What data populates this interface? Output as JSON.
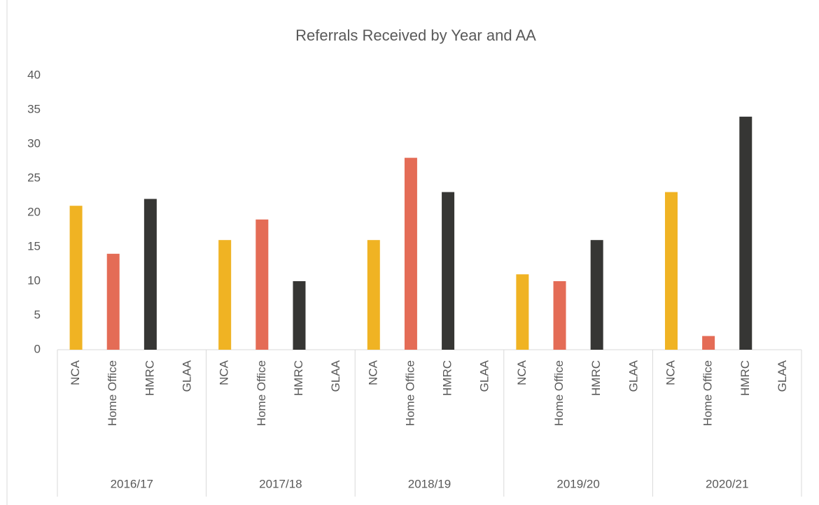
{
  "chart_data": {
    "type": "bar",
    "title": "Referrals Received by Year and AA",
    "groups": [
      {
        "name": "2016/17",
        "categories": [
          "NCA",
          "Home Office",
          "HMRC",
          "GLAA"
        ],
        "values": [
          21,
          14,
          22,
          0
        ]
      },
      {
        "name": "2017/18",
        "categories": [
          "NCA",
          "Home Office",
          "HMRC",
          "GLAA"
        ],
        "values": [
          16,
          19,
          10,
          0
        ]
      },
      {
        "name": "2018/19",
        "categories": [
          "NCA",
          "Home Office",
          "HMRC",
          "GLAA"
        ],
        "values": [
          16,
          28,
          23,
          0
        ]
      },
      {
        "name": "2019/20",
        "categories": [
          "NCA",
          "Home Office",
          "HMRC",
          "GLAA"
        ],
        "values": [
          11,
          10,
          16,
          0
        ]
      },
      {
        "name": "2020/21",
        "categories": [
          "NCA",
          "Home Office",
          "HMRC",
          "GLAA"
        ],
        "values": [
          23,
          2,
          34,
          0
        ]
      }
    ],
    "colors": [
      "#f0b323",
      "#e46c56",
      "#363634",
      "#a5a5a5"
    ],
    "ylim": [
      0,
      40
    ],
    "yticks": [
      0,
      5,
      10,
      15,
      20,
      25,
      30,
      35,
      40
    ],
    "grid": false
  }
}
